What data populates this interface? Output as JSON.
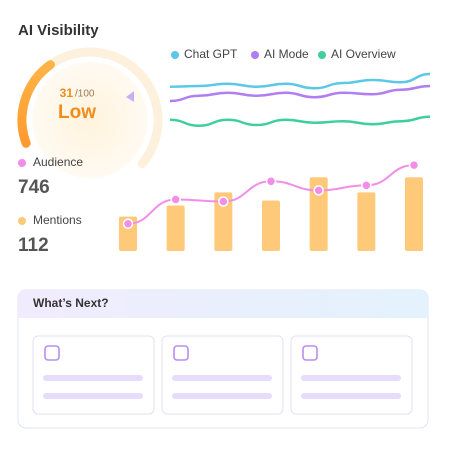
{
  "title": "AI Visibility",
  "gauge": {
    "value": 31,
    "max": {
      "value": 100,
      "label": "/100"
    },
    "status": "Low"
  },
  "chart_data": [
    {
      "type": "line",
      "ylim": [
        0,
        100
      ],
      "series": [
        {
          "name": "Chat GPT",
          "color": "#5cc8e8",
          "values": [
            71,
            72,
            75,
            71,
            75,
            69,
            76,
            80,
            77,
            88
          ]
        },
        {
          "name": "AI Mode",
          "color": "#b07ef0",
          "values": [
            52,
            59,
            63,
            59,
            63,
            57,
            63,
            61,
            67,
            72
          ]
        },
        {
          "name": "AI Overview",
          "color": "#3ecf9a",
          "values": [
            27,
            19,
            27,
            20,
            27,
            23,
            25,
            21,
            25,
            31
          ]
        }
      ]
    },
    {
      "type": "bar",
      "ylim": [
        0,
        100
      ],
      "series": [
        {
          "name": "Audience",
          "total": 746,
          "color": "#f28ee8",
          "values": [
            27,
            51,
            49,
            69,
            60,
            65,
            85
          ]
        },
        {
          "name": "Mentions",
          "total": 112,
          "color": "#ffc97a",
          "values": [
            34,
            45,
            58,
            50,
            73,
            58,
            73
          ]
        }
      ]
    }
  ],
  "next": {
    "title": "What’s Next?"
  }
}
